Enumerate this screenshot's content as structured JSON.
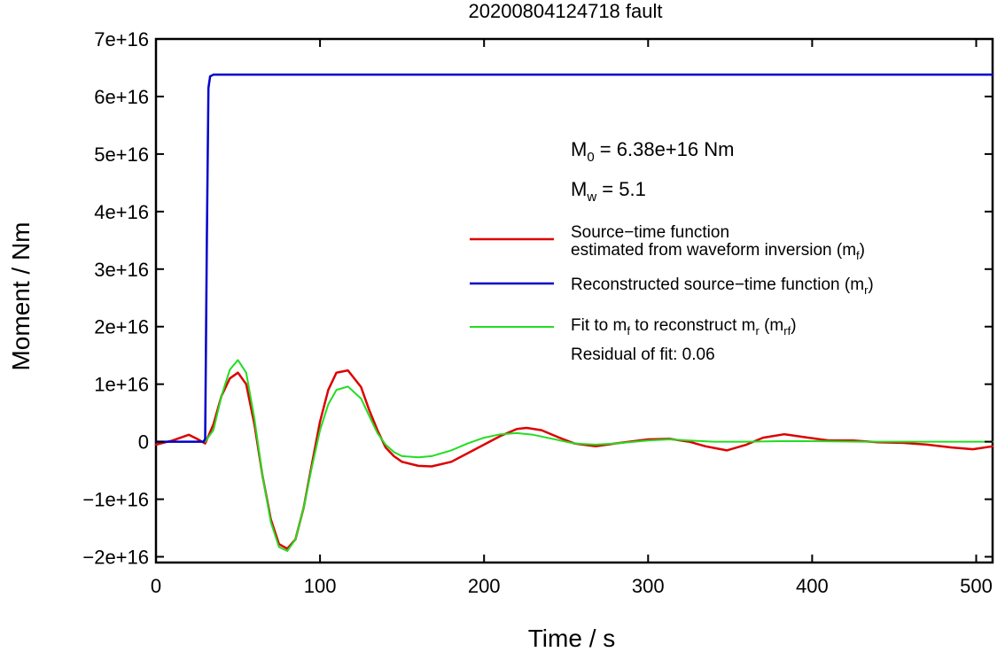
{
  "chart_data": {
    "type": "line",
    "title": "20200804124718 fault",
    "xlabel": "Time / s",
    "ylabel": "Moment / Nm",
    "xlim": [
      0,
      510
    ],
    "ylim": [
      -2.1e+16,
      7e+16
    ],
    "x_ticks": [
      0,
      100,
      200,
      300,
      400,
      500
    ],
    "x_tick_labels": [
      "0",
      "100",
      "200",
      "300",
      "400",
      "500"
    ],
    "y_ticks": [
      -2e+16,
      -1e+16,
      0,
      1e+16,
      2e+16,
      3e+16,
      4e+16,
      5e+16,
      6e+16,
      7e+16
    ],
    "y_tick_labels": [
      "−2e+16",
      "−1e+16",
      "0",
      "1e+16",
      "2e+16",
      "3e+16",
      "4e+16",
      "5e+16",
      "6e+16",
      "7e+16"
    ],
    "grid": false,
    "legend_position": "right",
    "annotations": {
      "m0": {
        "prefix": "M",
        "sub": "0",
        "text": " = 6.38e+16 Nm"
      },
      "mw": {
        "prefix": "M",
        "sub": "w",
        "text": " = 5.1"
      },
      "residual": "Residual of fit: 0.06"
    },
    "series": [
      {
        "name_line1": "Source−time function",
        "name_line2": "estimated from waveform inversion (m",
        "name_line2_sub": "f",
        "name_line2_end": ")",
        "color": "#dd0000",
        "x": [
          0,
          10,
          20,
          25,
          30,
          35,
          40,
          45,
          50,
          55,
          60,
          65,
          70,
          75,
          80,
          85,
          90,
          95,
          100,
          105,
          110,
          117,
          125,
          130,
          135,
          140,
          145,
          150,
          160,
          168,
          180,
          190,
          200,
          210,
          220,
          226,
          235,
          245,
          255,
          268,
          280,
          300,
          313,
          325,
          335,
          348,
          360,
          370,
          383,
          395,
          410,
          425,
          440,
          455,
          470,
          485,
          498,
          510
        ],
        "y": [
          -500000000000000.0,
          200000000000000.0,
          1200000000000000.0,
          500000000000000.0,
          -300000000000000.0,
          3000000000000000.0,
          8000000000000000.0,
          1.1e+16,
          1.2e+16,
          1e+16,
          3000000000000000.0,
          -6000000000000000.0,
          -1.35e+16,
          -1.78e+16,
          -1.86e+16,
          -1.7e+16,
          -1.15e+16,
          -4000000000000000.0,
          3500000000000000.0,
          9000000000000000.0,
          1.2e+16,
          1.24e+16,
          9500000000000000.0,
          5500000000000000.0,
          2000000000000000.0,
          -1000000000000000.0,
          -2500000000000000.0,
          -3500000000000000.0,
          -4200000000000000.0,
          -4300000000000000.0,
          -3500000000000000.0,
          -2000000000000000.0,
          -500000000000000.0,
          1000000000000000.0,
          2200000000000000.0,
          2400000000000000.0,
          2000000000000000.0,
          800000000000000.0,
          -300000000000000.0,
          -800000000000000.0,
          -300000000000000.0,
          400000000000000.0,
          500000000000000.0,
          0.0,
          -800000000000000.0,
          -1500000000000000.0,
          -500000000000000.0,
          700000000000000.0,
          1300000000000000.0,
          800000000000000.0,
          200000000000000.0,
          200000000000000.0,
          -100000000000000.0,
          -200000000000000.0,
          -500000000000000.0,
          -1000000000000000.0,
          -1300000000000000.0,
          -800000000000000.0
        ]
      },
      {
        "name": "Reconstructed source−time function (m",
        "name_sub": "r",
        "name_end": ")",
        "color": "#0000cc",
        "x": [
          0,
          29,
          30,
          31,
          32,
          33,
          35,
          40,
          60,
          100,
          200,
          300,
          400,
          510
        ],
        "y": [
          0,
          0,
          500000000000000.0,
          3.5e+16,
          6.15e+16,
          6.35e+16,
          6.38e+16,
          6.38e+16,
          6.38e+16,
          6.38e+16,
          6.38e+16,
          6.38e+16,
          6.38e+16,
          6.38e+16
        ]
      },
      {
        "name": "Fit to m",
        "name_sub": "f",
        "name_mid": " to reconstruct m",
        "name_sub2": "r",
        "name_mid2": " (m",
        "name_sub3": "rf",
        "name_end": ")",
        "color": "#22dd22",
        "x": [
          0,
          10,
          20,
          25,
          30,
          35,
          40,
          45,
          50,
          55,
          60,
          65,
          70,
          75,
          80,
          85,
          90,
          95,
          100,
          105,
          110,
          117,
          125,
          130,
          135,
          140,
          145,
          150,
          160,
          168,
          180,
          190,
          200,
          210,
          220,
          230,
          245,
          255,
          268,
          280,
          300,
          313,
          325,
          340,
          360,
          380,
          400,
          430,
          460,
          490,
          510
        ],
        "y": [
          0,
          0,
          0,
          0,
          0,
          2000000000000000.0,
          8000000000000000.0,
          1.25e+16,
          1.42e+16,
          1.2e+16,
          4000000000000000.0,
          -6000000000000000.0,
          -1.4e+16,
          -1.83e+16,
          -1.9e+16,
          -1.7e+16,
          -1.15e+16,
          -4500000000000000.0,
          2000000000000000.0,
          6500000000000000.0,
          9000000000000000.0,
          9600000000000000.0,
          7500000000000000.0,
          4500000000000000.0,
          1500000000000000.0,
          -500000000000000.0,
          -1800000000000000.0,
          -2500000000000000.0,
          -2700000000000000.0,
          -2500000000000000.0,
          -1500000000000000.0,
          -300000000000000.0,
          700000000000000.0,
          1300000000000000.0,
          1500000000000000.0,
          1200000000000000.0,
          300000000000000.0,
          -300000000000000.0,
          -500000000000000.0,
          -300000000000000.0,
          200000000000000.0,
          400000000000000.0,
          200000000000000.0,
          0.0,
          0.0,
          100000000000000.0,
          100000000000000.0,
          0.0,
          0.0,
          0.0,
          0.0
        ]
      }
    ]
  }
}
